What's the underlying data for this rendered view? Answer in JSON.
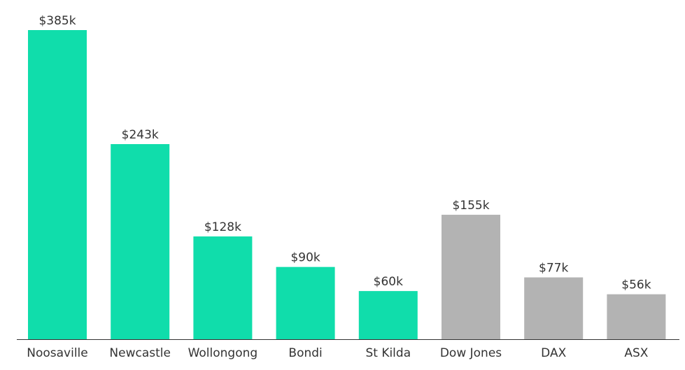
{
  "chart_data": {
    "type": "bar",
    "categories": [
      "Noosaville",
      "Newcastle",
      "Wollongong",
      "Bondi",
      "St Kilda",
      "Dow Jones",
      "DAX",
      "ASX"
    ],
    "values": [
      385,
      243,
      128,
      90,
      60,
      155,
      77,
      56
    ],
    "value_labels": [
      "$385k",
      "$243k",
      "$128k",
      "$90k",
      "$60k",
      "$155k",
      "$77k",
      "$56k"
    ],
    "bar_colors": [
      "#10DDAB",
      "#10DDAB",
      "#10DDAB",
      "#10DDAB",
      "#10DDAB",
      "#B3B3B3",
      "#B3B3B3",
      "#B3B3B3"
    ],
    "ylim": [
      0,
      385
    ],
    "grid": false,
    "legend": "none",
    "baseline_color": "#333333"
  }
}
